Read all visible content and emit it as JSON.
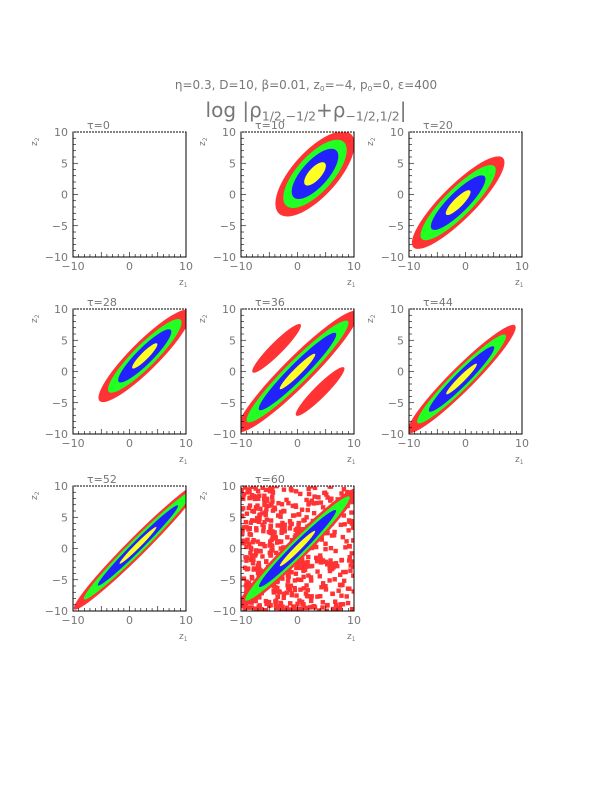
{
  "figure": {
    "params": [
      {
        "symbol": "η",
        "value": "=0.3"
      },
      {
        "symbol": "D",
        "value": "=10"
      },
      {
        "symbol": "β",
        "value": "=0.01"
      },
      {
        "symbol": "z",
        "sub": "0",
        "value": "=−4"
      },
      {
        "symbol": "p",
        "sub": "0",
        "value": "=0"
      },
      {
        "symbol": "ε",
        "value": "=400"
      }
    ],
    "quantity": "log |ρ1/2,−1/2 + ρ−1/2,1/2|"
  },
  "colors": {
    "level_outer": "#ff3333",
    "level_2": "#22ff22",
    "level_3": "#2222ff",
    "level_inner": "#ffff22",
    "axis": "#000000",
    "text": "#777777"
  },
  "chart_data": [
    {
      "type": "heatmap",
      "title": "τ=0",
      "xlabel": "z1",
      "ylabel": "z2",
      "xlim": [
        -10,
        10
      ],
      "ylim": [
        -10,
        10
      ],
      "x_ticks": [
        "−10",
        "0",
        "10"
      ],
      "y_ticks": [
        "−10",
        "−5",
        "0",
        "5",
        "10"
      ],
      "levels": [],
      "blobs": []
    },
    {
      "type": "heatmap",
      "title": "τ=10",
      "xlabel": "z1",
      "ylabel": "z2",
      "xlim": [
        -10,
        10
      ],
      "ylim": [
        -10,
        10
      ],
      "x_ticks": [
        "−10",
        "0",
        "10"
      ],
      "y_ticks": [
        "−10",
        "−5",
        "0",
        "5",
        "10"
      ],
      "levels": [
        "outer",
        "2",
        "3",
        "inner"
      ],
      "blobs": [
        {
          "cx": 3.1,
          "cy": 3.3,
          "angle_deg": 48,
          "a": [
            9.5,
            7.6,
            5.6,
            2.6
          ],
          "b": [
            3.6,
            2.9,
            2.1,
            1.0
          ]
        }
      ]
    },
    {
      "type": "heatmap",
      "title": "τ=20",
      "xlabel": "z1",
      "ylabel": "z2",
      "xlim": [
        -10,
        10
      ],
      "ylim": [
        -10,
        10
      ],
      "x_ticks": [
        "−10",
        "0",
        "10"
      ],
      "y_ticks": [
        "−10",
        "−5",
        "0",
        "5",
        "10"
      ],
      "levels": [
        "outer",
        "2",
        "3",
        "inner"
      ],
      "blobs": [
        {
          "cx": -1.3,
          "cy": -1.3,
          "angle_deg": 45,
          "a": [
            11.2,
            9.1,
            6.6,
            3.0
          ],
          "b": [
            2.7,
            2.2,
            1.6,
            0.75
          ]
        }
      ]
    },
    {
      "type": "heatmap",
      "title": "τ=28",
      "xlabel": "z1",
      "ylabel": "z2",
      "xlim": [
        -10,
        10
      ],
      "ylim": [
        -10,
        10
      ],
      "x_ticks": [
        "−10",
        "0",
        "10"
      ],
      "y_ticks": [
        "−10",
        "−5",
        "0",
        "5",
        "10"
      ],
      "levels": [
        "outer",
        "2",
        "3",
        "inner"
      ],
      "blobs": [
        {
          "cx": 2.7,
          "cy": 2.5,
          "angle_deg": 45,
          "a": [
            11.3,
            9.0,
            6.5,
            3.1
          ],
          "b": [
            2.3,
            1.8,
            1.3,
            0.6
          ]
        }
      ]
    },
    {
      "type": "heatmap",
      "title": "τ=36",
      "xlabel": "z1",
      "ylabel": "z2",
      "xlim": [
        -10,
        10
      ],
      "ylim": [
        -10,
        10
      ],
      "x_ticks": [
        "−10",
        "0",
        "10"
      ],
      "y_ticks": [
        "−10",
        "−5",
        "0",
        "5",
        "10"
      ],
      "levels": [
        "outer",
        "2",
        "3",
        "inner"
      ],
      "blobs": [
        {
          "cx": 0,
          "cy": 0,
          "angle_deg": 45,
          "a": [
            15,
            12.6,
            9.6,
            4.4
          ],
          "b": [
            2.3,
            1.8,
            1.3,
            0.6
          ]
        },
        {
          "cx": -3.7,
          "cy": 3.7,
          "angle_deg": 45,
          "a": [
            6.0
          ],
          "b": [
            1.0
          ]
        },
        {
          "cx": 4.0,
          "cy": -3.2,
          "angle_deg": 45,
          "a": [
            6.0
          ],
          "b": [
            1.0
          ]
        }
      ]
    },
    {
      "type": "heatmap",
      "title": "τ=44",
      "xlabel": "z1",
      "ylabel": "z2",
      "xlim": [
        -10,
        10
      ],
      "ylim": [
        -10,
        10
      ],
      "x_ticks": [
        "−10",
        "0",
        "10"
      ],
      "y_ticks": [
        "−10",
        "−5",
        "0",
        "5",
        "10"
      ],
      "levels": [
        "outer",
        "2",
        "3",
        "inner"
      ],
      "blobs": [
        {
          "cx": -0.7,
          "cy": -1.2,
          "angle_deg": 45,
          "a": [
            13.4,
            11.0,
            8.1,
            3.8
          ],
          "b": [
            1.9,
            1.5,
            1.1,
            0.5
          ]
        }
      ]
    },
    {
      "type": "heatmap",
      "title": "τ=52",
      "xlabel": "z1",
      "ylabel": "z2",
      "xlim": [
        -10,
        10
      ],
      "ylim": [
        -10,
        10
      ],
      "x_ticks": [
        "−10",
        "0",
        "10"
      ],
      "y_ticks": [
        "−10",
        "−5",
        "0",
        "5",
        "10"
      ],
      "levels": [
        "outer",
        "2",
        "3",
        "inner"
      ],
      "blobs": [
        {
          "cx": 1.5,
          "cy": 0.5,
          "angle_deg": 45,
          "a": [
            16,
            13.5,
            10,
            4.6
          ],
          "b": [
            1.5,
            1.15,
            0.8,
            0.4
          ]
        }
      ]
    },
    {
      "type": "heatmap",
      "title": "τ=60",
      "xlabel": "z1",
      "ylabel": "z2",
      "xlim": [
        -10,
        10
      ],
      "ylim": [
        -10,
        10
      ],
      "x_ticks": [
        "−10",
        "0",
        "10"
      ],
      "y_ticks": [
        "−10",
        "−5",
        "0",
        "5",
        "10"
      ],
      "levels": [
        "outer",
        "2",
        "3",
        "inner"
      ],
      "background": "noise",
      "blobs": [
        {
          "cx": 0,
          "cy": 0,
          "angle_deg": 45,
          "a": [
            15,
            13,
            9.6,
            4.4
          ],
          "b": [
            1.7,
            1.3,
            0.95,
            0.45
          ]
        }
      ]
    }
  ]
}
